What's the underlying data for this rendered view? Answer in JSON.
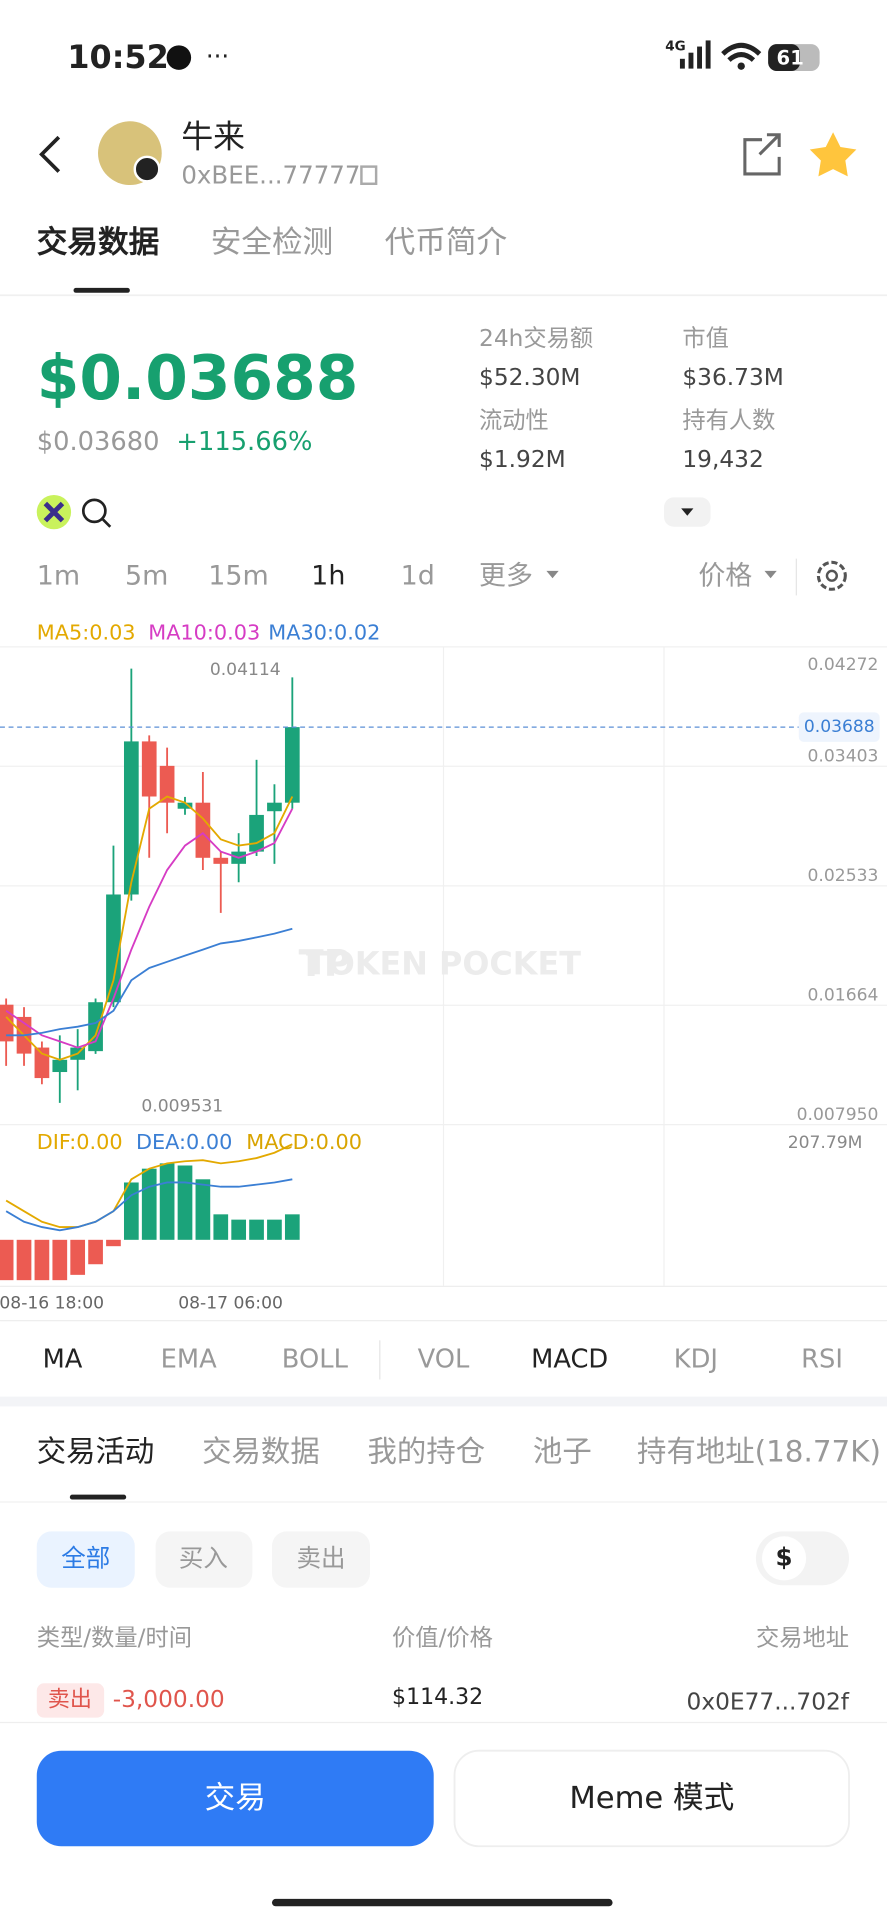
{
  "status": {
    "time": "10:52",
    "network": "4G",
    "battery": "61"
  },
  "header": {
    "title": "牛来",
    "address": "0xBEE...77777"
  },
  "tabs": [
    "交易数据",
    "安全检测",
    "代币简介"
  ],
  "price": {
    "current": "$0.03688",
    "reference": "$0.03680",
    "change": "+115.66%"
  },
  "stats": [
    {
      "label": "24h交易额",
      "value": "$52.30M"
    },
    {
      "label": "市值",
      "value": "$36.73M"
    },
    {
      "label": "流动性",
      "value": "$1.92M"
    },
    {
      "label": "持有人数",
      "value": "19,432"
    }
  ],
  "intervals": [
    "1m",
    "5m",
    "15m",
    "1h",
    "1d",
    "更多"
  ],
  "price_mode": "价格",
  "watermark": "TOKEN POCKET",
  "chart_data": {
    "type": "candlestick",
    "categories": [
      null,
      null,
      "08-16 18:00",
      null,
      null,
      null,
      null,
      null,
      null,
      null,
      null,
      null,
      "08-17 06:00",
      null,
      null,
      null,
      null
    ],
    "open": [
      0.01668,
      0.01579,
      0.01356,
      0.01178,
      0.01267,
      0.0133,
      0.01686,
      0.0247,
      0.03584,
      0.03406,
      0.03094,
      0.03138,
      0.02737,
      0.02693,
      0.02782,
      0.03076,
      0.03138
    ],
    "high": [
      0.01713,
      0.0165,
      0.014,
      0.01445,
      0.0149,
      0.01713,
      0.02826,
      0.04114,
      0.03628,
      0.03539,
      0.0318,
      0.03361,
      0.0278,
      0.02916,
      0.0345,
      0.03272,
      0.0405
    ],
    "low": [
      0.01223,
      0.01223,
      0.01089,
      0.009531,
      0.01045,
      0.0131,
      0.0165,
      0.02425,
      0.02737,
      0.02916,
      0.0305,
      0.02648,
      0.02336,
      0.02559,
      0.0275,
      0.02693,
      0.03094
    ],
    "close": [
      0.01401,
      0.01312,
      0.01134,
      0.01267,
      0.01356,
      0.01686,
      0.0247,
      0.03584,
      0.03183,
      0.03138,
      0.03138,
      0.02737,
      0.02693,
      0.02782,
      0.03049,
      0.03138,
      0.03688
    ],
    "up_color": "#1ba37a",
    "down_color": "#ec5b52",
    "ylim": [
      0.00795,
      0.04272
    ],
    "yticks": [
      0.04272,
      0.03403,
      0.02533,
      0.01664,
      {
        "value": 0.00795,
        "label": "0.007950"
      }
    ],
    "grid": true,
    "current_price": 0.03688,
    "high_label": 0.04114,
    "low_label": 0.009531,
    "volume_label": "207.79M",
    "ma": [
      {
        "name": "MA5:0.03",
        "color": "#e3a900",
        "values": [
          0.01579,
          0.01445,
          0.01312,
          0.01267,
          0.01312,
          0.01445,
          0.01846,
          0.02559,
          0.03094,
          0.03183,
          0.03138,
          0.03023,
          0.02871,
          0.02826,
          0.02844,
          0.02916,
          0.03183
        ]
      },
      {
        "name": "MA10:0.03",
        "color": "#d63cc4",
        "values": [
          0.01624,
          0.01535,
          0.01445,
          0.01401,
          0.01356,
          0.01401,
          0.01713,
          0.02069,
          0.02381,
          0.02648,
          0.02826,
          0.02916,
          0.02782,
          0.02737,
          0.02782,
          0.02844,
          0.03094
        ]
      },
      {
        "name": "MA30:0.02",
        "color": "#3b7fd4",
        "values": [
          0.01445,
          0.01445,
          0.01463,
          0.0149,
          0.01508,
          0.01535,
          0.01624,
          0.01846,
          0.01935,
          0.0198,
          0.02025,
          0.02069,
          0.02114,
          0.02132,
          0.02158,
          0.02185,
          0.02221
        ]
      }
    ],
    "macd": {
      "labels": [
        {
          "name": "DIF:0.00",
          "color": "#e3a900"
        },
        {
          "name": "DEA:0.00",
          "color": "#3b7fd4"
        },
        {
          "name": "MACD:0.00",
          "color": "#d9a400"
        }
      ],
      "histogram": [
        -0.00038,
        -0.00038,
        -0.00038,
        -0.00038,
        -0.00033,
        -0.00023,
        -6e-05,
        0.00054,
        0.00067,
        0.00072,
        0.0007,
        0.00057,
        0.00024,
        0.00019,
        0.00019,
        0.00019,
        0.00024
      ],
      "dif": [
        0.00037,
        0.00027,
        0.00017,
        0.00012,
        0.00012,
        0.00017,
        0.00027,
        0.00057,
        0.00067,
        0.00072,
        0.00074,
        0.00075,
        0.00072,
        0.00074,
        0.00077,
        0.00082,
        0.0009
      ],
      "dea": [
        0.00027,
        0.00017,
        0.00012,
        9e-05,
        0.00012,
        0.00017,
        0.00027,
        0.00042,
        0.0005,
        0.00054,
        0.00054,
        0.00052,
        0.0005,
        0.0005,
        0.00052,
        0.00054,
        0.00057
      ]
    }
  },
  "indicators": [
    "MA",
    "EMA",
    "BOLL",
    "VOL",
    "MACD",
    "KDJ",
    "RSI"
  ],
  "activity_tabs": [
    "交易活动",
    "交易数据",
    "我的持仓",
    "池子",
    "持有地址(18.77K)"
  ],
  "filters": [
    "全部",
    "买入",
    "卖出"
  ],
  "currency_toggle": "$",
  "table": {
    "headers": [
      "类型/数量/时间",
      "价值/价格",
      "交易地址"
    ],
    "rows": [
      [
        "卖出",
        "-3,000.00",
        "$114.32",
        "0x0E77...702f"
      ]
    ]
  },
  "buttons": [
    "交易",
    "Meme 模式"
  ]
}
